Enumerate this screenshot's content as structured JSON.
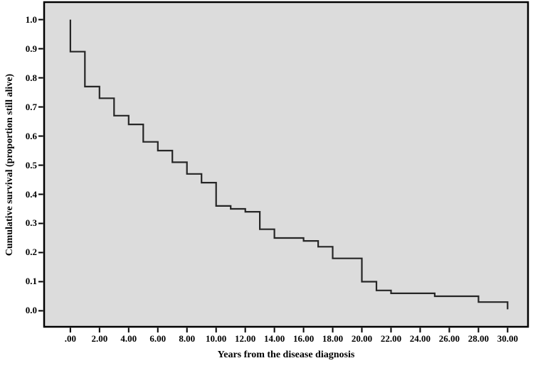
{
  "figure": {
    "background": "#ffffff",
    "plot_background": "#dcdcdc",
    "border_color": "#000000",
    "line_color": "#262626",
    "tick_color": "#000000"
  },
  "chart_data": {
    "type": "line",
    "subtype": "kaplan-meier-step-curve",
    "title": "",
    "xlabel": "Years from the disease diagnosis",
    "ylabel": "Cumulative survival (proportion still alive)",
    "xlim": [
      0,
      30
    ],
    "ylim": [
      0.0,
      1.0
    ],
    "x_plot_range": [
      -1.8,
      31.4
    ],
    "y_plot_range": [
      -0.055,
      1.06
    ],
    "grid": false,
    "legend": false,
    "x_ticks": [
      {
        "value": 0,
        "label": ".00"
      },
      {
        "value": 2,
        "label": "2.00"
      },
      {
        "value": 4,
        "label": "4.00"
      },
      {
        "value": 6,
        "label": "6.00"
      },
      {
        "value": 8,
        "label": "8.00"
      },
      {
        "value": 10,
        "label": "10.00"
      },
      {
        "value": 12,
        "label": "12.00"
      },
      {
        "value": 14,
        "label": "14.00"
      },
      {
        "value": 16,
        "label": "16.00"
      },
      {
        "value": 18,
        "label": "18.00"
      },
      {
        "value": 20,
        "label": "20.00"
      },
      {
        "value": 22,
        "label": "22.00"
      },
      {
        "value": 24,
        "label": "24.00"
      },
      {
        "value": 26,
        "label": "26.00"
      },
      {
        "value": 28,
        "label": "28.00"
      },
      {
        "value": 30,
        "label": "30.00"
      }
    ],
    "y_ticks": [
      {
        "value": 0.0,
        "label": "0.0"
      },
      {
        "value": 0.1,
        "label": "0.1"
      },
      {
        "value": 0.2,
        "label": "0.2"
      },
      {
        "value": 0.3,
        "label": "0.3"
      },
      {
        "value": 0.4,
        "label": "0.4"
      },
      {
        "value": 0.5,
        "label": "0.5"
      },
      {
        "value": 0.6,
        "label": "0.6"
      },
      {
        "value": 0.7,
        "label": "0.7"
      },
      {
        "value": 0.8,
        "label": "0.8"
      },
      {
        "value": 0.9,
        "label": "0.9"
      },
      {
        "value": 1.0,
        "label": "1.0"
      }
    ],
    "series": [
      {
        "name": "Cumulative survival",
        "step_points": [
          [
            0,
            1.0
          ],
          [
            0,
            0.89
          ],
          [
            1,
            0.89
          ],
          [
            1,
            0.77
          ],
          [
            2,
            0.77
          ],
          [
            2,
            0.73
          ],
          [
            3,
            0.73
          ],
          [
            3,
            0.67
          ],
          [
            4,
            0.67
          ],
          [
            4,
            0.64
          ],
          [
            5,
            0.64
          ],
          [
            5,
            0.58
          ],
          [
            6,
            0.58
          ],
          [
            6,
            0.55
          ],
          [
            7,
            0.55
          ],
          [
            7,
            0.51
          ],
          [
            8,
            0.51
          ],
          [
            8,
            0.47
          ],
          [
            9,
            0.47
          ],
          [
            9,
            0.44
          ],
          [
            10,
            0.44
          ],
          [
            10,
            0.36
          ],
          [
            11,
            0.36
          ],
          [
            11,
            0.35
          ],
          [
            12,
            0.35
          ],
          [
            12,
            0.34
          ],
          [
            13,
            0.34
          ],
          [
            13,
            0.28
          ],
          [
            14,
            0.28
          ],
          [
            14,
            0.25
          ],
          [
            16,
            0.25
          ],
          [
            16,
            0.24
          ],
          [
            17,
            0.24
          ],
          [
            17,
            0.22
          ],
          [
            18,
            0.22
          ],
          [
            18,
            0.18
          ],
          [
            20,
            0.18
          ],
          [
            20,
            0.1
          ],
          [
            21,
            0.1
          ],
          [
            21,
            0.07
          ],
          [
            22,
            0.07
          ],
          [
            22,
            0.06
          ],
          [
            25,
            0.06
          ],
          [
            25,
            0.05
          ],
          [
            28,
            0.05
          ],
          [
            28,
            0.03
          ],
          [
            30,
            0.03
          ],
          [
            30,
            0.005
          ]
        ]
      }
    ]
  }
}
